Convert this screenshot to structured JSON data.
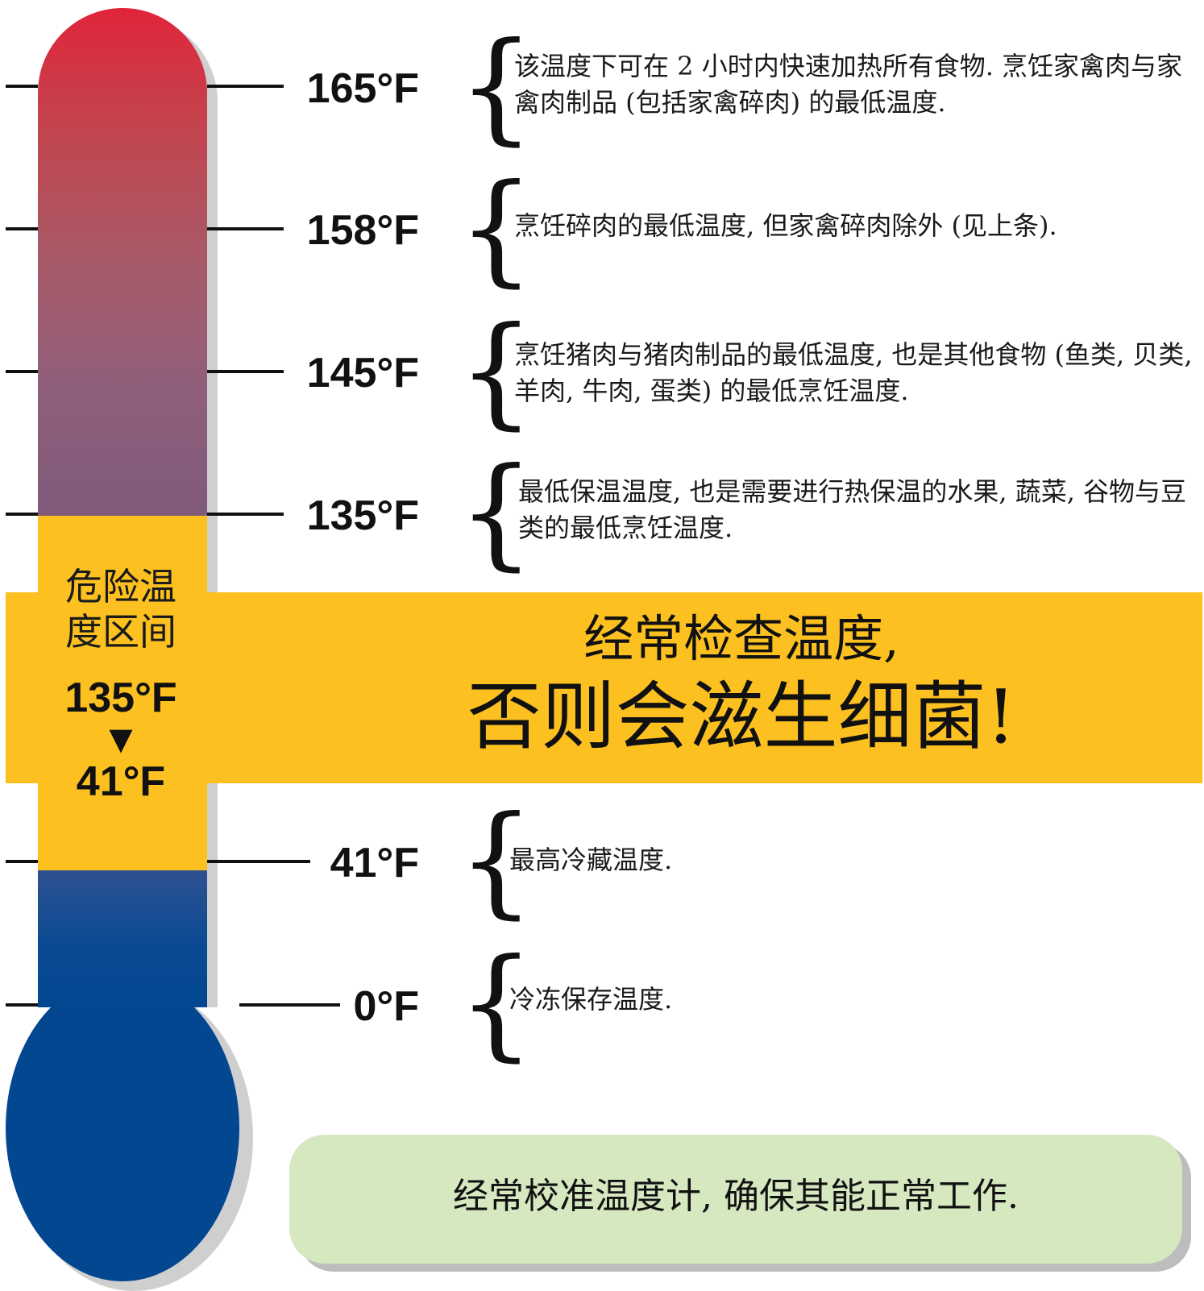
{
  "colors": {
    "hot_top": "#e1243a",
    "hot_bottom": "#805a7a",
    "danger_zone": "#fcc020",
    "cold": "#034791",
    "note_box": "#d6e8c0"
  },
  "danger_zone": {
    "label_line1": "危险温",
    "label_line2": "度区间",
    "upper_temp": "135°F",
    "arrow": "▼",
    "lower_temp": "41°F"
  },
  "banner": {
    "line1": "经常检查温度,",
    "line2": "否则会滋生细菌!"
  },
  "markers": [
    {
      "temp": "165°F",
      "brace": "{",
      "description": "该温度下可在 2 小时内快速加热所有食物. 烹饪家禽肉与家禽肉制品 (包括家禽碎肉) 的最低温度."
    },
    {
      "temp": "158°F",
      "brace": "{",
      "description": "烹饪碎肉的最低温度, 但家禽碎肉除外 (见上条)."
    },
    {
      "temp": "145°F",
      "brace": "{",
      "description": "烹饪猪肉与猪肉制品的最低温度, 也是其他食物 (鱼类, 贝类, 羊肉, 牛肉, 蛋类) 的最低烹饪温度."
    },
    {
      "temp": "135°F",
      "brace": "{",
      "description": "最低保温温度, 也是需要进行热保温的水果, 蔬菜, 谷物与豆类的最低烹饪温度."
    },
    {
      "temp": "41°F",
      "brace": "{",
      "description": "最高冷藏温度."
    },
    {
      "temp": "0°F",
      "brace": "{",
      "description": "冷冻保存温度."
    }
  ],
  "note": {
    "text": "经常校准温度计, 确保其能正常工作."
  }
}
